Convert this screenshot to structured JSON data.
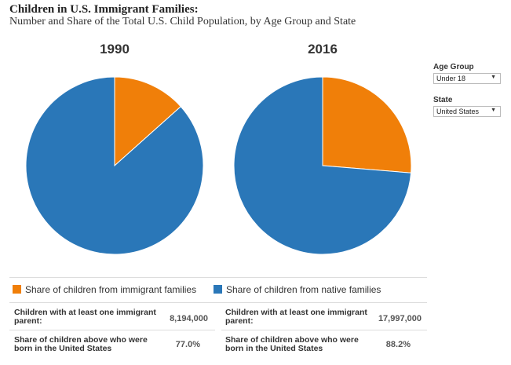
{
  "title": "Children in U.S. Immigrant Families:",
  "subtitle": "Number and Share of the Total U.S. Child Population, by Age Group and State",
  "filters": {
    "age_group_label": "Age Group",
    "age_group_value": "Under 18",
    "state_label": "State",
    "state_value": "United States"
  },
  "legend": {
    "immigrant": "Share of children from immigrant families",
    "native": "Share of children from native families"
  },
  "colors": {
    "immigrant": "#f07f09",
    "native": "#2a77b8"
  },
  "stats": [
    {
      "label1": "Children with at least one immigrant parent:",
      "value1": "8,194,000",
      "label2": "Share of children above who were born in the United States",
      "value2": "77.0%"
    },
    {
      "label1": "Children with at least one immigrant parent:",
      "value1": "17,997,000",
      "label2": "Share of children above who were born in the United States",
      "value2": "88.2%"
    }
  ],
  "chart_data": {
    "type": "pie",
    "charts": [
      {
        "title": "1990",
        "slices": [
          {
            "name": "Share of children from immigrant families",
            "value": 13.4
          },
          {
            "name": "Share of children from native families",
            "value": 86.6
          }
        ]
      },
      {
        "title": "2016",
        "slices": [
          {
            "name": "Share of children from immigrant families",
            "value": 26.3
          },
          {
            "name": "Share of children from native families",
            "value": 73.7
          }
        ]
      }
    ]
  }
}
